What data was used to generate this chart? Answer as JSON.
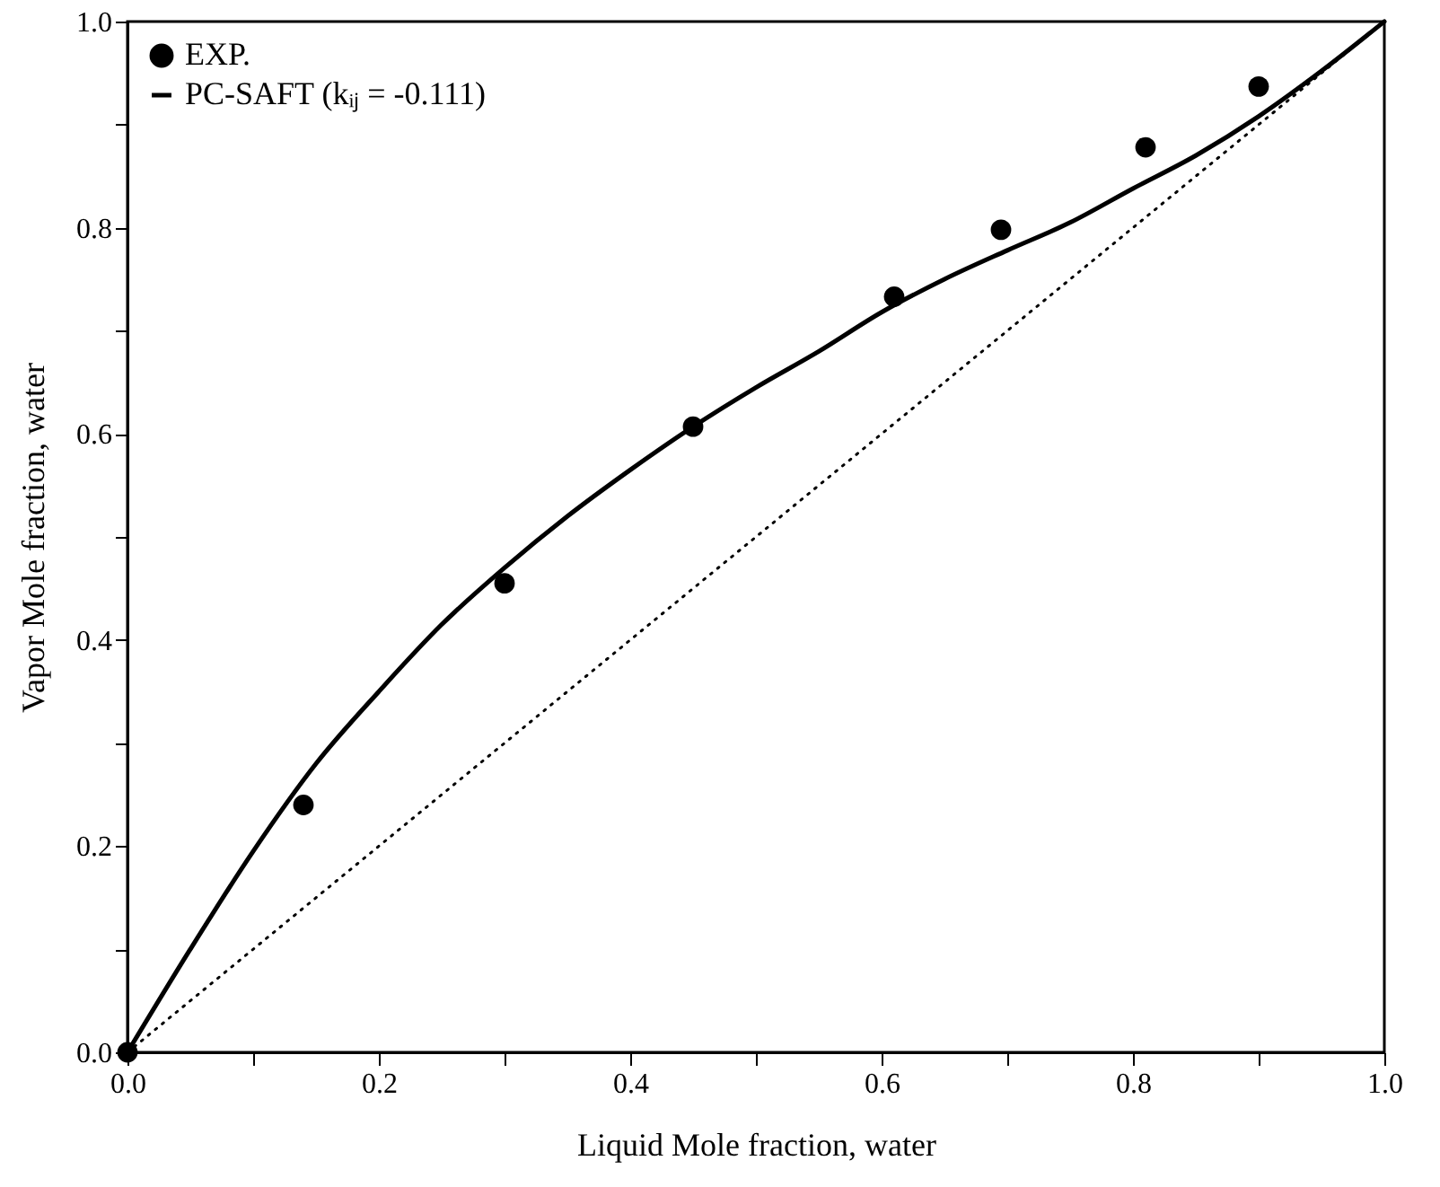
{
  "chart_data": {
    "type": "scatter",
    "xlabel": "Liquid Mole fraction, water",
    "ylabel": "Vapor Mole fraction, water",
    "xlim": [
      0,
      1
    ],
    "ylim": [
      0,
      1
    ],
    "xticks": [
      {
        "value": 0,
        "label": "0.0"
      },
      {
        "value": 0.1,
        "label": null
      },
      0.2,
      {
        "value": 0.3,
        "label": null
      },
      0.4,
      {
        "value": 0.5,
        "label": null
      },
      0.6,
      {
        "value": 0.7,
        "label": null
      },
      0.8,
      {
        "value": 0.9,
        "label": null
      },
      {
        "value": 1,
        "label": "1.0"
      }
    ],
    "yticks": [
      {
        "value": 0,
        "label": "0.0"
      },
      {
        "value": 0.1,
        "label": null
      },
      0.2,
      {
        "value": 0.3,
        "label": null
      },
      0.4,
      {
        "value": 0.5,
        "label": null
      },
      0.6,
      {
        "value": 0.7,
        "label": null
      },
      0.8,
      {
        "value": 0.9,
        "label": null
      },
      {
        "value": 1,
        "label": "1.0"
      }
    ],
    "legend": "top left",
    "grid": false,
    "series": [
      {
        "name": "EXP.",
        "marker": "circle",
        "color": "#000000",
        "x": [
          0,
          0.14,
          0.3,
          0.45,
          0.61,
          0.695,
          0.81,
          0.9
        ],
        "values": [
          0,
          0.24,
          0.455,
          0.607,
          0.733,
          0.798,
          0.878,
          0.937
        ]
      },
      {
        "name": "PC-SAFT  (kᵢⱼ = -0.111)",
        "type": "line",
        "line_style": "solid",
        "color": "#000000",
        "x": [
          0,
          0.05,
          0.1,
          0.15,
          0.2,
          0.25,
          0.3,
          0.35,
          0.4,
          0.45,
          0.5,
          0.55,
          0.6,
          0.65,
          0.7,
          0.75,
          0.8,
          0.85,
          0.9,
          0.95,
          1
        ],
        "values": [
          0,
          0.1,
          0.195,
          0.28,
          0.35,
          0.415,
          0.47,
          0.52,
          0.565,
          0.607,
          0.645,
          0.68,
          0.718,
          0.75,
          0.778,
          0.805,
          0.838,
          0.87,
          0.908,
          0.952,
          1
        ]
      },
      {
        "type": "line",
        "line_style": "dotted",
        "color": "#000000",
        "x": [
          0,
          1
        ],
        "values": [
          0,
          1
        ]
      }
    ]
  }
}
